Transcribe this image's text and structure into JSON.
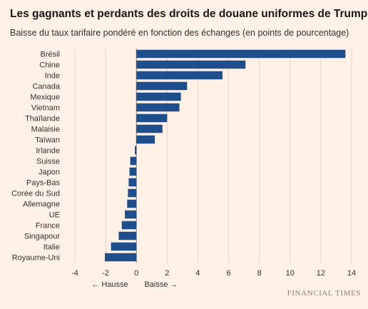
{
  "chart_data": {
    "type": "bar",
    "orientation": "horizontal",
    "title": "Les gagnants et perdants des droits de douane uniformes de Trump",
    "subtitle": "Baisse du taux tarifaire pondéré en fonction des échanges (en points de pourcentage)",
    "categories": [
      "Brésil",
      "Chine",
      "Inde",
      "Canada",
      "Mexique",
      "Vietnam",
      "Thaïlande",
      "Malaisie",
      "Taïwan",
      "Irlande",
      "Suisse",
      "Japon",
      "Pays-Bas",
      "Corée du Sud",
      "Allemagne",
      "UE",
      "France",
      "Singapour",
      "Italie",
      "Royaume-Uni"
    ],
    "values": [
      13.6,
      7.1,
      5.6,
      3.3,
      2.9,
      2.8,
      2.0,
      1.7,
      1.2,
      -0.1,
      -0.4,
      -0.45,
      -0.5,
      -0.55,
      -0.6,
      -0.75,
      -0.95,
      -1.15,
      -1.65,
      -2.05
    ],
    "xlim": [
      -4,
      14
    ],
    "xticks": [
      -4,
      -2,
      0,
      2,
      4,
      6,
      8,
      10,
      12,
      14
    ],
    "grid": true,
    "bar_color": "#1f4e8c",
    "annotations": {
      "left": "← Hausse",
      "right": "Baisse →"
    }
  },
  "source": "FINANCIAL TIMES"
}
